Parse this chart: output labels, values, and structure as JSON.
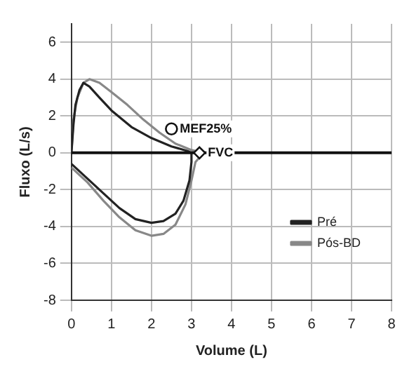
{
  "chart_data": {
    "type": "line",
    "xlabel": "Volume (L)",
    "ylabel": "Fluxo (L/s)",
    "xlim": [
      0,
      8
    ],
    "ylim": [
      -8,
      7
    ],
    "xticks": [
      0,
      1,
      2,
      3,
      4,
      5,
      6,
      7,
      8
    ],
    "yticks": [
      -8,
      -6,
      -4,
      -2,
      0,
      2,
      4,
      6
    ],
    "grid": true,
    "legend": "bottom right",
    "marker": "none",
    "line_style": "solid",
    "series": [
      {
        "name": "Pré",
        "color": "#222222",
        "x": [
          0,
          0.05,
          0.1,
          0.2,
          0.3,
          0.45,
          0.7,
          1.0,
          1.5,
          2.0,
          2.5,
          2.9,
          3.0,
          3.0,
          2.95,
          2.8,
          2.6,
          2.3,
          2.0,
          1.6,
          1.2,
          0.8,
          0.4,
          0
        ],
        "values": [
          0,
          1.5,
          2.6,
          3.4,
          3.8,
          3.6,
          3.0,
          2.3,
          1.4,
          0.8,
          0.35,
          0.1,
          0,
          -0.5,
          -1.5,
          -2.6,
          -3.3,
          -3.7,
          -3.8,
          -3.6,
          -3.0,
          -2.2,
          -1.4,
          -0.6
        ]
      },
      {
        "name": "Pós-BD",
        "color": "#888888",
        "x": [
          0,
          0.05,
          0.15,
          0.3,
          0.45,
          0.7,
          1.0,
          1.4,
          1.8,
          2.2,
          2.6,
          3.0,
          3.3,
          3.1,
          3.0,
          2.85,
          2.6,
          2.3,
          2.0,
          1.6,
          1.2,
          0.8,
          0.4,
          0
        ],
        "values": [
          0,
          1.8,
          3.0,
          3.8,
          4.0,
          3.8,
          3.3,
          2.6,
          1.8,
          1.1,
          0.5,
          0.15,
          0,
          -0.5,
          -1.5,
          -2.8,
          -3.9,
          -4.4,
          -4.5,
          -4.2,
          -3.5,
          -2.6,
          -1.6,
          -0.8
        ]
      }
    ],
    "ref_lines": [
      {
        "axis": "y",
        "value": 0,
        "color": "#111111"
      }
    ],
    "annotations": [
      {
        "text": "MEF25%",
        "x": 2.5,
        "y": 1.3
      },
      {
        "text": "FVC",
        "x": 3.2,
        "y": 0
      }
    ]
  }
}
